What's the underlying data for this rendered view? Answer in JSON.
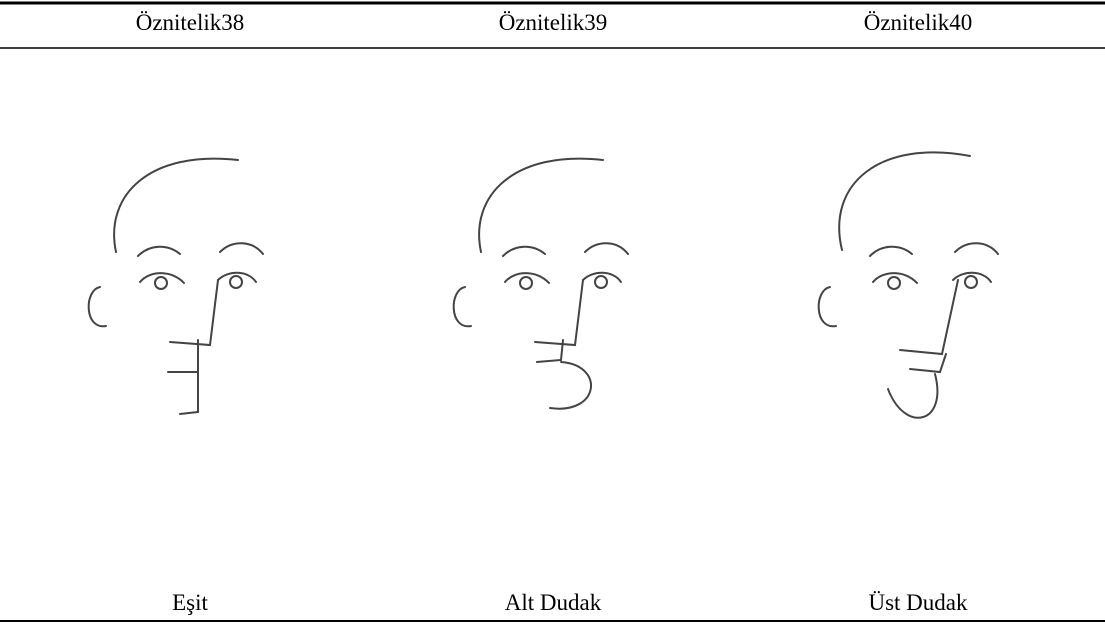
{
  "table": {
    "header": [
      "Öznitelik38",
      "Öznitelik39",
      "Öznitelik40"
    ],
    "labels": [
      "Eşit",
      "Alt Dudak",
      "Üst Dudak"
    ]
  }
}
